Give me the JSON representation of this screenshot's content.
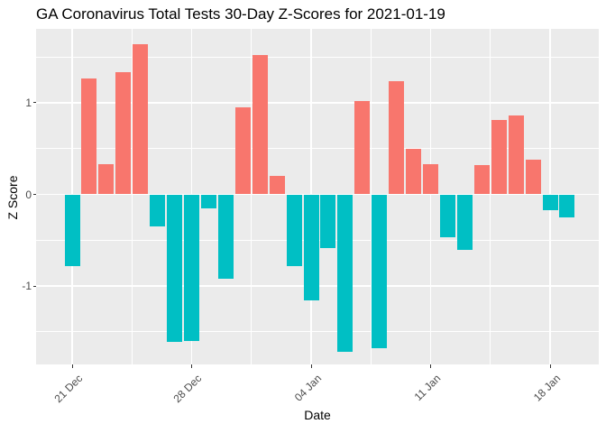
{
  "chart_data": {
    "type": "bar",
    "title": "GA Coronavirus Total Tests 30-Day Z-Scores for 2021-01-19",
    "xlabel": "Date",
    "ylabel": "Z Score",
    "categories": [
      "Dec 21",
      "Dec 22",
      "Dec 23",
      "Dec 24",
      "Dec 25",
      "Dec 26",
      "Dec 27",
      "Dec 28",
      "Dec 29",
      "Dec 30",
      "Dec 31",
      "Jan 01",
      "Jan 02",
      "Jan 03",
      "Jan 04",
      "Jan 05",
      "Jan 06",
      "Jan 07",
      "Jan 08",
      "Jan 09",
      "Jan 10",
      "Jan 11",
      "Jan 12",
      "Jan 13",
      "Jan 14",
      "Jan 15",
      "Jan 16",
      "Jan 17",
      "Jan 18",
      "Jan 19"
    ],
    "values": [
      -0.78,
      1.26,
      0.33,
      1.33,
      1.64,
      -0.35,
      -1.61,
      -1.6,
      -0.15,
      -0.92,
      0.95,
      1.52,
      0.2,
      -0.78,
      -1.16,
      -0.59,
      -1.72,
      1.02,
      -1.68,
      1.24,
      0.5,
      0.33,
      -0.47,
      -0.61,
      0.32,
      0.81,
      0.86,
      0.38,
      -0.17,
      -0.25
    ],
    "x_tick_labels": [
      "21 Dec",
      "28 Dec",
      "04 Jan",
      "11 Jan",
      "18 Jan"
    ],
    "x_tick_indices": [
      0,
      7,
      14,
      21,
      28
    ],
    "y_tick_labels": [
      "1",
      "0",
      "-1"
    ],
    "y_tick_values": [
      1,
      0,
      -1
    ],
    "y_minor_values": [
      1.5,
      0.5,
      -0.5,
      -1.5
    ],
    "ylim": [
      -1.86,
      1.81
    ],
    "grid": true,
    "legend": "none",
    "colors": {
      "positive_fill": "#F8766D",
      "negative_fill": "#00BFC4",
      "panel_bg": "#EBEBEB",
      "grid": "#FFFFFF",
      "axis_text": "#4d4d4d",
      "tick_mark": "#333333",
      "text": "#000000",
      "page_bg": "#FFFFFF"
    }
  }
}
